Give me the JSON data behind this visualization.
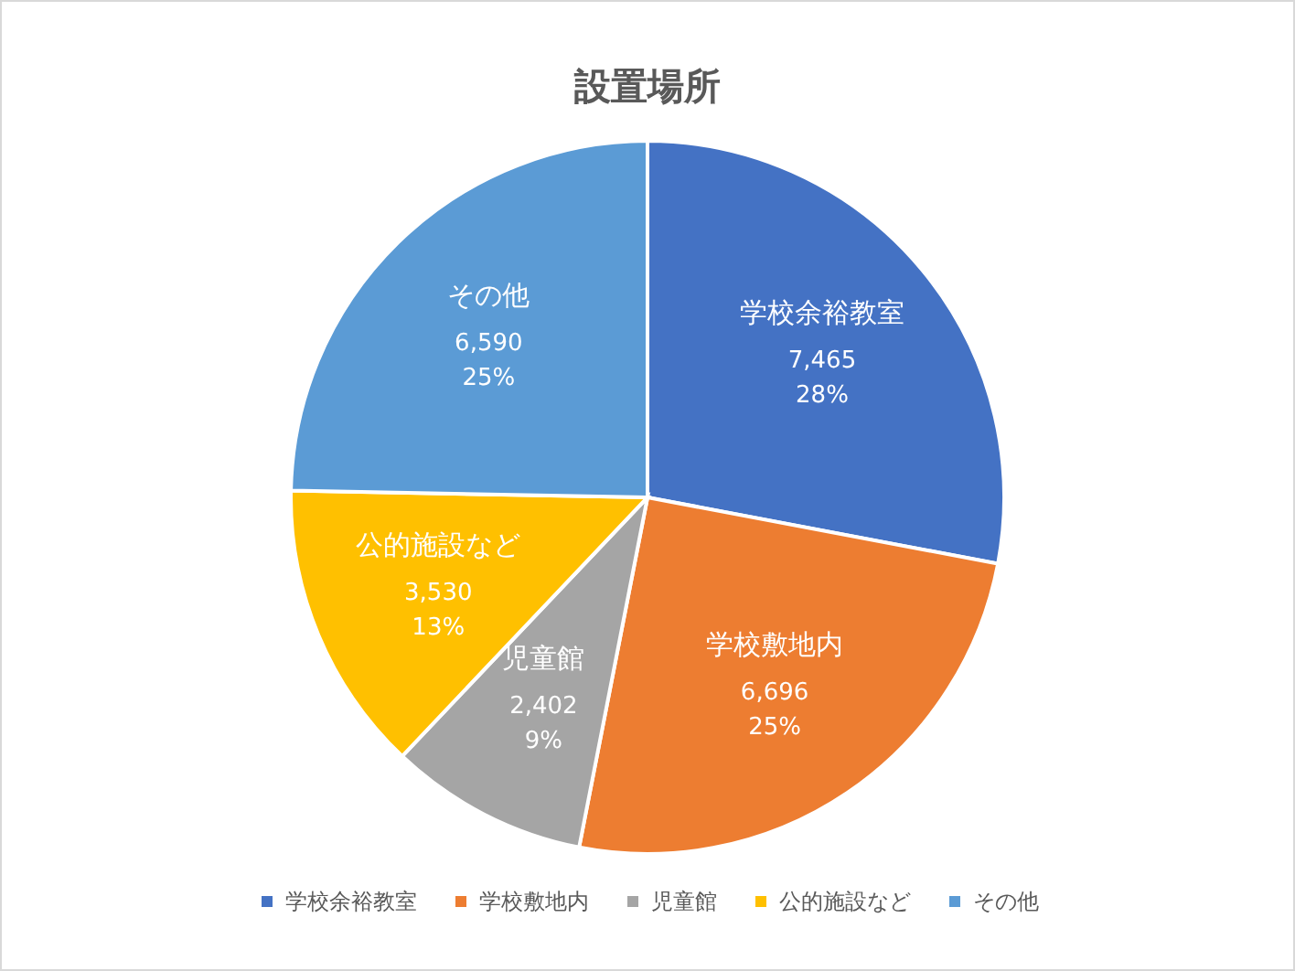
{
  "chart_data": {
    "type": "pie",
    "title": "設置場所",
    "categories": [
      "学校余裕教室",
      "学校敷地内",
      "児童館",
      "公的施設など",
      "その他"
    ],
    "values": [
      7465,
      6696,
      2402,
      3530,
      6590
    ],
    "colors": [
      "#4472c4",
      "#ed7d31",
      "#a5a5a5",
      "#ffc000",
      "#5b9bd5"
    ],
    "value_labels": [
      "7,465\n28%",
      "6,696\n25%",
      "2,402\n9%",
      "3,530\n13%",
      "6,590\n25%"
    ],
    "legend": "bottom"
  }
}
